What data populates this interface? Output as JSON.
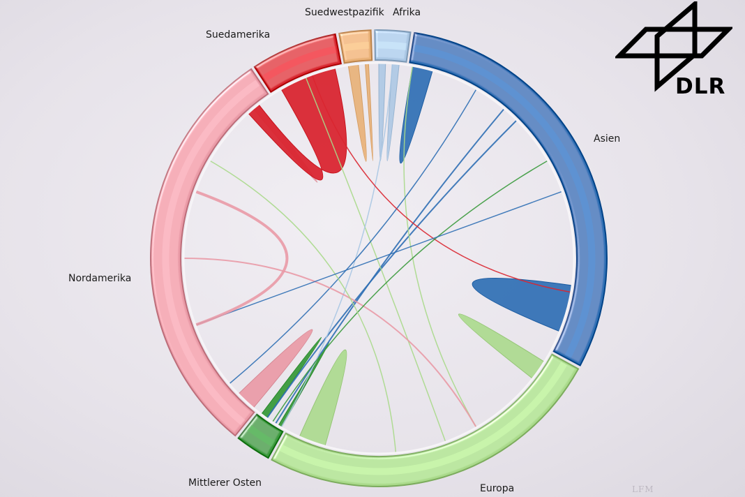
{
  "logo": {
    "text": "DLR"
  },
  "watermark": {
    "text": "LFM"
  },
  "regions": [
    {
      "id": "suedwestpazifik",
      "label": "Suedwestpazifik",
      "color": "#e8b076"
    },
    {
      "id": "afrika",
      "label": "Afrika",
      "color": "#a9c6e3"
    },
    {
      "id": "asien",
      "label": "Asien",
      "color": "#2f6fb4"
    },
    {
      "id": "europa",
      "label": "Europa",
      "color": "#a9d98a"
    },
    {
      "id": "mittlerer_osten",
      "label": "Mittlerer Osten",
      "color": "#3a9a3c"
    },
    {
      "id": "nordamerika",
      "label": "Nordamerika",
      "color": "#e99aa6"
    },
    {
      "id": "suedamerika",
      "label": "Suedamerika",
      "color": "#d92630"
    }
  ]
}
